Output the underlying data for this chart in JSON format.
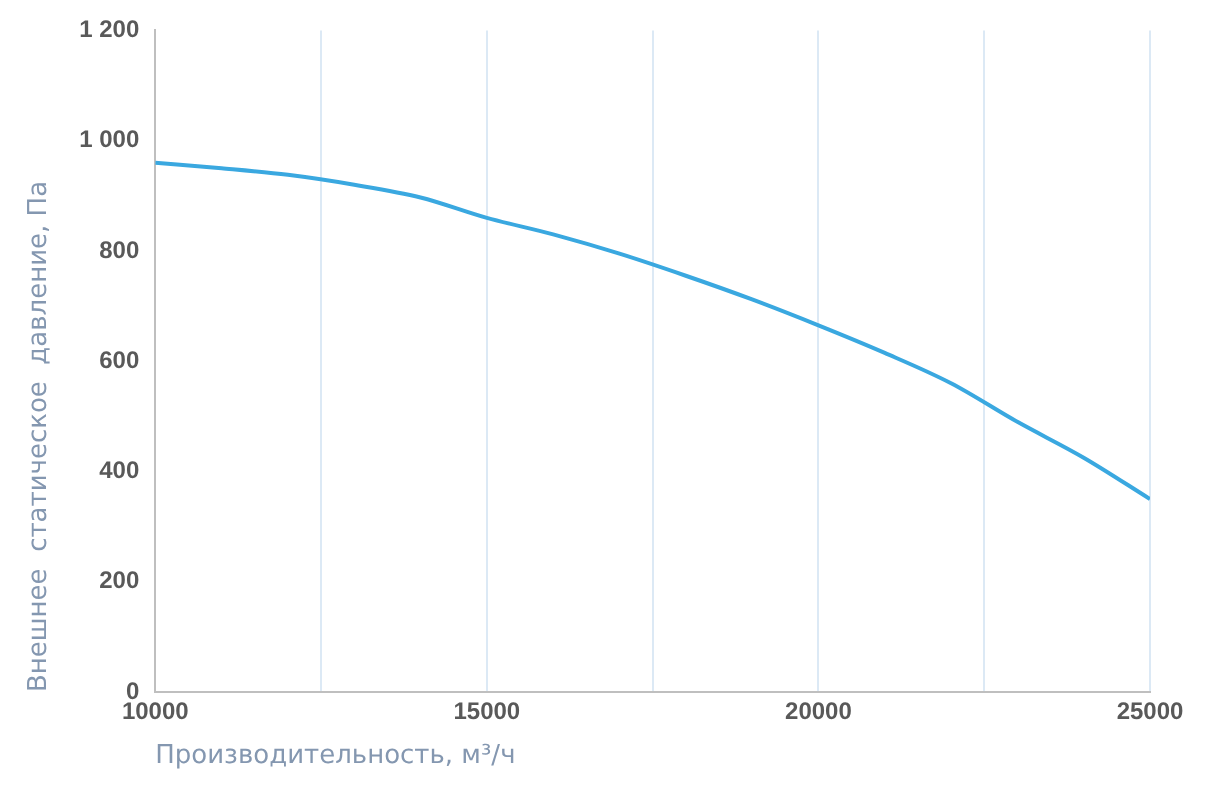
{
  "chart_data": {
    "type": "line",
    "xlabel": "Производительность, м³/ч",
    "ylabel": "Внешнее  статическое  давление, Па",
    "x": [
      10000,
      11000,
      12000,
      13000,
      14000,
      15000,
      16000,
      17000,
      18000,
      19000,
      20000,
      21000,
      22000,
      23000,
      24000,
      25000
    ],
    "series": [
      {
        "color": "#3aa8e0",
        "values": [
          960,
          950,
          938,
          920,
          897,
          860,
          830,
          795,
          755,
          712,
          665,
          615,
          560,
          490,
          425,
          350
        ]
      }
    ],
    "xlim": [
      10000,
      25000
    ],
    "xticks": [
      10000,
      {
        "value": 12500,
        "label": null
      },
      15000,
      {
        "value": 17500,
        "label": null
      },
      20000,
      {
        "value": 22500,
        "label": null
      },
      25000
    ],
    "ylim": [
      0,
      1200
    ],
    "yticks": [
      0,
      200,
      400,
      600,
      800,
      {
        "value": 1000,
        "label": "1 000"
      },
      {
        "value": 1200,
        "label": "1 200"
      }
    ],
    "grid": "x",
    "legend": false,
    "marker": "none",
    "line_style": "solid"
  }
}
